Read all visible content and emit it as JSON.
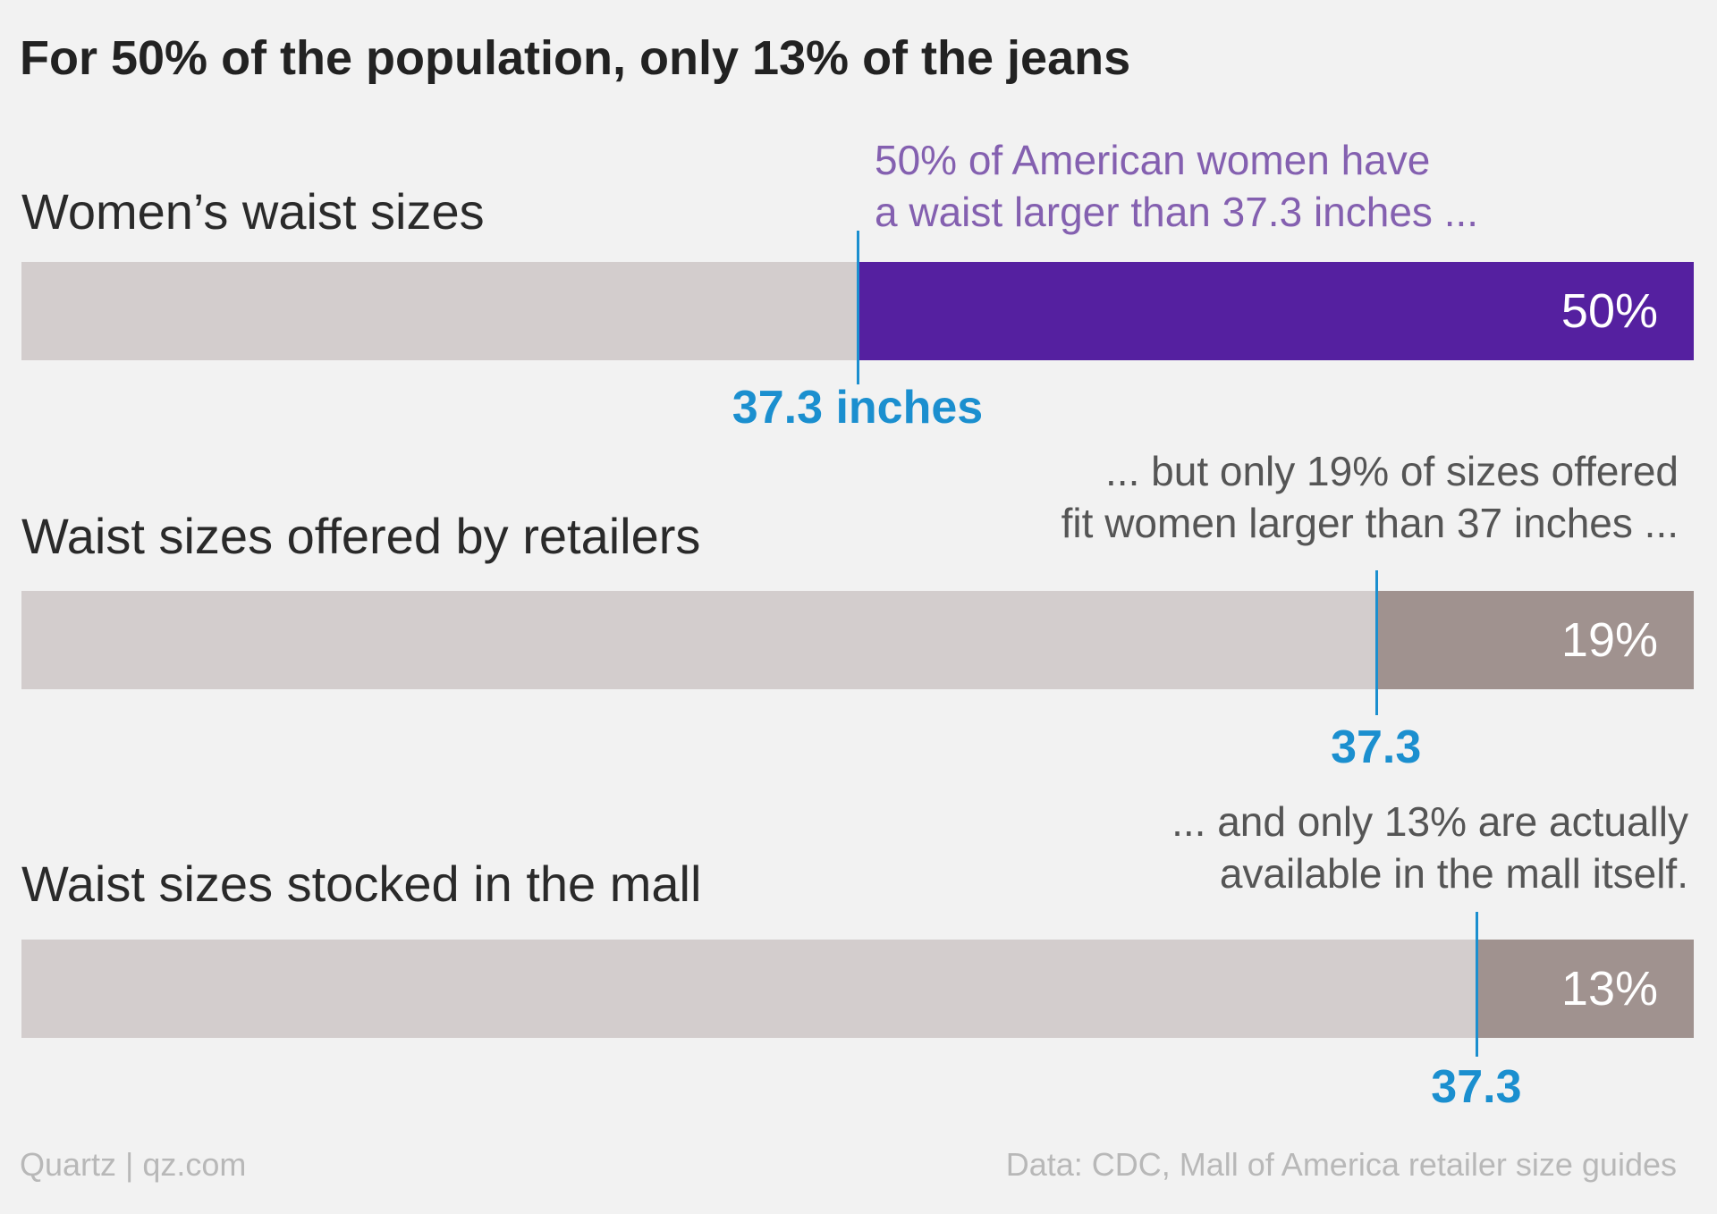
{
  "header": {
    "title": "For 50% of the population, only 13% of the jeans"
  },
  "footer": {
    "source_left": "Quartz | qz.com",
    "source_right": "Data: CDC, Mall of America retailer size guides"
  },
  "colors": {
    "background": "#f2f2f2",
    "bar_base": "#d3cdcd",
    "women_fill": "#5520a0",
    "retail_fill": "#a0928f",
    "marker": "#1b8fcf",
    "annotation_purple": "#8460b0",
    "annotation_gray": "#555555"
  },
  "chart_data": {
    "type": "bar",
    "orientation": "horizontal",
    "title": "For 50% of the population, only 13% of the jeans",
    "xlim": [
      0,
      100
    ],
    "categories": [
      "Women’s waist sizes",
      "Waist sizes offered by retailers",
      "Waist sizes stocked in the mall"
    ],
    "values": [
      50,
      19,
      13
    ],
    "value_labels": [
      "50%",
      "19%",
      "13%"
    ],
    "marker_labels": [
      "37.3 inches",
      "37.3",
      "37.3"
    ],
    "annotations": [
      [
        "50% of American women have",
        "a waist larger than 37.3 inches ..."
      ],
      [
        "... but only 19% of sizes offered",
        "fit women larger than 37 inches ..."
      ],
      [
        "... and only 13% are actually",
        "available in the mall itself."
      ]
    ],
    "grid": false,
    "legend": "none"
  }
}
